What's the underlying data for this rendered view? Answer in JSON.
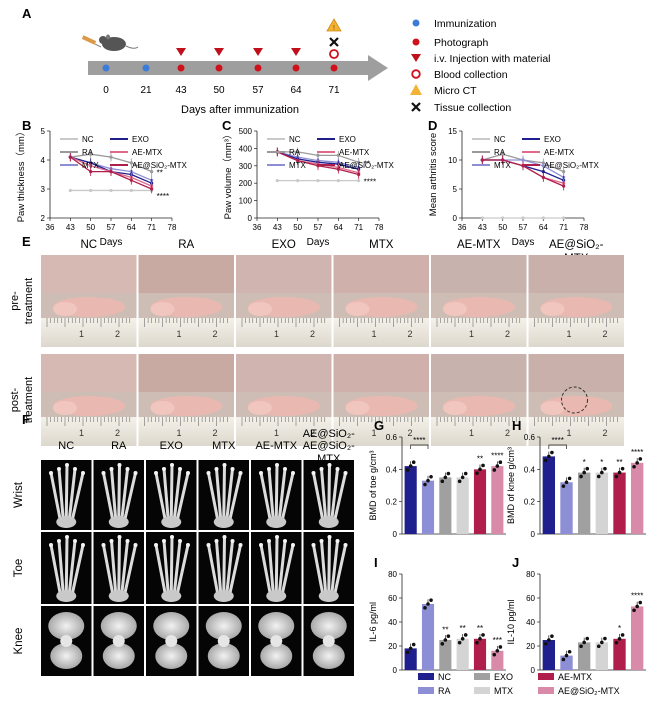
{
  "panel_letters": {
    "A": "A",
    "B": "B",
    "C": "C",
    "D": "D",
    "E": "E",
    "F": "F",
    "G": "G",
    "H": "H",
    "I": "I",
    "J": "J"
  },
  "timeline": {
    "days": [
      "0",
      "21",
      "43",
      "50",
      "57",
      "64",
      "71"
    ],
    "xlabel": "Days after immunization",
    "legend": [
      {
        "symbol": "blue-dot",
        "label": "Immunization",
        "color": "#3d7bd9"
      },
      {
        "symbol": "red-dot",
        "label": "Photograph",
        "color": "#d0101b"
      },
      {
        "symbol": "red-triangle",
        "label": "i.v. Injection with material",
        "color": "#c0101b"
      },
      {
        "symbol": "red-ring",
        "label": "Blood collection",
        "color": "#d0101b"
      },
      {
        "symbol": "warning-triangle",
        "label": "Micro CT",
        "color": "#f2b233"
      },
      {
        "symbol": "black-cross",
        "label": "Tissue collection",
        "color": "#111111"
      }
    ]
  },
  "line_legend": [
    "NC",
    "RA",
    "MTX",
    "EXO",
    "AE-MTX",
    "AE@SiO₂-MTX"
  ],
  "colors": {
    "NC": "#c9c9c9",
    "RA": "#9a9a9a",
    "EXO": "#1f1f8e",
    "MTX": "#8d8fd6",
    "AE-MTX": "#e06a8a",
    "AE@SiO2-MTX": "#b01f4b",
    "grid": "#dddddd"
  },
  "sig": {
    "B_top": "**",
    "B_bot": "****",
    "C_top": "**",
    "C_bot": "****"
  },
  "photos": {
    "headers": [
      "NC",
      "RA",
      "EXO",
      "MTX",
      "AE-MTX",
      "AE@SiO₂-"
    ],
    "header_extra": "MTX",
    "rows": [
      "pre-treatment",
      "post-treatment"
    ],
    "row_labels": [
      [
        "pre-",
        "treatment"
      ],
      [
        "post-",
        "treatment"
      ]
    ],
    "ruler": [
      "1",
      "2"
    ]
  },
  "ct": {
    "headers": [
      "NC",
      "RA",
      "EXO",
      "MTX",
      "AE-MTX",
      "AE@SiO₂-"
    ],
    "header_extra": "MTX",
    "rows": [
      "Wrist",
      "Toe",
      "Knee"
    ]
  },
  "bar_legend": [
    "NC",
    "EXO",
    "AE-MTX",
    "RA",
    "MTX",
    "AE@SiO₂-MTX"
  ],
  "chart_data": [
    {
      "panel": "B",
      "type": "line",
      "xlabel": "Days",
      "ylabel": "Paw thickness（mm）",
      "xlim": [
        36,
        78
      ],
      "ylim": [
        2,
        5
      ],
      "xticks": [
        36,
        43,
        50,
        57,
        64,
        71,
        78
      ],
      "yticks": [
        2,
        3,
        4,
        5
      ],
      "x": [
        43,
        50,
        57,
        64,
        71
      ],
      "series": [
        {
          "name": "NC",
          "values": [
            2.95,
            2.95,
            2.95,
            2.95,
            2.95
          ]
        },
        {
          "name": "RA",
          "values": [
            4.1,
            4.2,
            4.1,
            3.9,
            3.6
          ]
        },
        {
          "name": "MTX",
          "values": [
            4.1,
            3.9,
            3.7,
            3.6,
            3.3
          ]
        },
        {
          "name": "EXO",
          "values": [
            4.1,
            3.9,
            3.6,
            3.5,
            3.2
          ]
        },
        {
          "name": "AE-MTX",
          "values": [
            4.1,
            3.8,
            3.6,
            3.4,
            3.1
          ]
        },
        {
          "name": "AE@SiO₂-MTX",
          "values": [
            4.1,
            3.6,
            3.6,
            3.3,
            3.0
          ]
        }
      ]
    },
    {
      "panel": "C",
      "type": "line",
      "xlabel": "Days",
      "ylabel": "Paw volume（mm³）",
      "xlim": [
        36,
        78
      ],
      "ylim": [
        0,
        500
      ],
      "xticks": [
        36,
        43,
        50,
        57,
        64,
        71,
        78
      ],
      "yticks": [
        0,
        100,
        200,
        300,
        400,
        500
      ],
      "x": [
        43,
        50,
        57,
        64,
        71
      ],
      "series": [
        {
          "name": "NC",
          "values": [
            215,
            215,
            215,
            215,
            215
          ]
        },
        {
          "name": "RA",
          "values": [
            380,
            380,
            360,
            360,
            320
          ]
        },
        {
          "name": "MTX",
          "values": [
            380,
            350,
            330,
            320,
            290
          ]
        },
        {
          "name": "EXO",
          "values": [
            380,
            340,
            320,
            310,
            280
          ]
        },
        {
          "name": "AE-MTX",
          "values": [
            380,
            330,
            310,
            290,
            260
          ]
        },
        {
          "name": "AE@SiO₂-MTX",
          "values": [
            380,
            330,
            300,
            280,
            250
          ]
        }
      ]
    },
    {
      "panel": "D",
      "type": "line",
      "xlabel": "Days",
      "ylabel": "Mean arthritis score",
      "xlim": [
        36,
        78
      ],
      "ylim": [
        0,
        15
      ],
      "xticks": [
        36,
        43,
        50,
        57,
        64,
        71,
        78
      ],
      "yticks": [
        0,
        5,
        10,
        15
      ],
      "x": [
        43,
        50,
        57,
        64,
        71
      ],
      "series": [
        {
          "name": "NC",
          "values": [
            0,
            0,
            0,
            0,
            0
          ]
        },
        {
          "name": "RA",
          "values": [
            10,
            11,
            10,
            9.5,
            8
          ]
        },
        {
          "name": "MTX",
          "values": [
            10,
            10,
            10,
            9,
            7
          ]
        },
        {
          "name": "EXO",
          "values": [
            10,
            10,
            9,
            8,
            6.5
          ]
        },
        {
          "name": "AE-MTX",
          "values": [
            10,
            10,
            9,
            7,
            6
          ]
        },
        {
          "name": "AE@SiO₂-MTX",
          "values": [
            10,
            10,
            9,
            7,
            5.5
          ]
        }
      ]
    },
    {
      "panel": "G",
      "type": "bar",
      "ylabel": "BMD of toe g/cm³",
      "ylim": [
        0,
        0.6
      ],
      "yticks": [
        0,
        0.2,
        0.4,
        0.6
      ],
      "categories": [
        "NC",
        "RA",
        "EXO",
        "MTX",
        "AE-MTX",
        "AE@SiO₂-MTX"
      ],
      "values": [
        0.42,
        0.33,
        0.35,
        0.35,
        0.4,
        0.42
      ],
      "stars": [
        "",
        "",
        "",
        "",
        "**",
        "****"
      ],
      "bracket": "****"
    },
    {
      "panel": "H",
      "type": "bar",
      "ylabel": "BMD of knee g/cm³",
      "ylim": [
        0,
        0.6
      ],
      "yticks": [
        0,
        0.2,
        0.4,
        0.6
      ],
      "categories": [
        "NC",
        "RA",
        "EXO",
        "MTX",
        "AE-MTX",
        "AE@SiO₂-MTX"
      ],
      "values": [
        0.48,
        0.32,
        0.38,
        0.38,
        0.38,
        0.44
      ],
      "stars": [
        "",
        "",
        "*",
        "*",
        "**",
        "****"
      ],
      "bracket": "****"
    },
    {
      "panel": "I",
      "type": "bar",
      "ylabel": "IL-6 pg/ml",
      "ylim": [
        0,
        80
      ],
      "yticks": [
        0,
        20,
        40,
        60,
        80
      ],
      "categories": [
        "NC",
        "RA",
        "EXO",
        "MTX",
        "AE-MTX",
        "AE@SiO₂-MTX"
      ],
      "values": [
        18,
        55,
        25,
        26,
        26,
        16
      ],
      "stars": [
        "",
        "",
        "**",
        "**",
        "**",
        "***"
      ]
    },
    {
      "panel": "J",
      "type": "bar",
      "ylabel": "IL-10 pg/ml",
      "ylim": [
        0,
        80
      ],
      "yticks": [
        0,
        20,
        40,
        60,
        80
      ],
      "categories": [
        "NC",
        "RA",
        "EXO",
        "MTX",
        "AE-MTX",
        "AE@SiO₂-MTX"
      ],
      "values": [
        25,
        12,
        23,
        23,
        26,
        53
      ],
      "stars": [
        "",
        "",
        "",
        "",
        "*",
        "****"
      ]
    }
  ]
}
